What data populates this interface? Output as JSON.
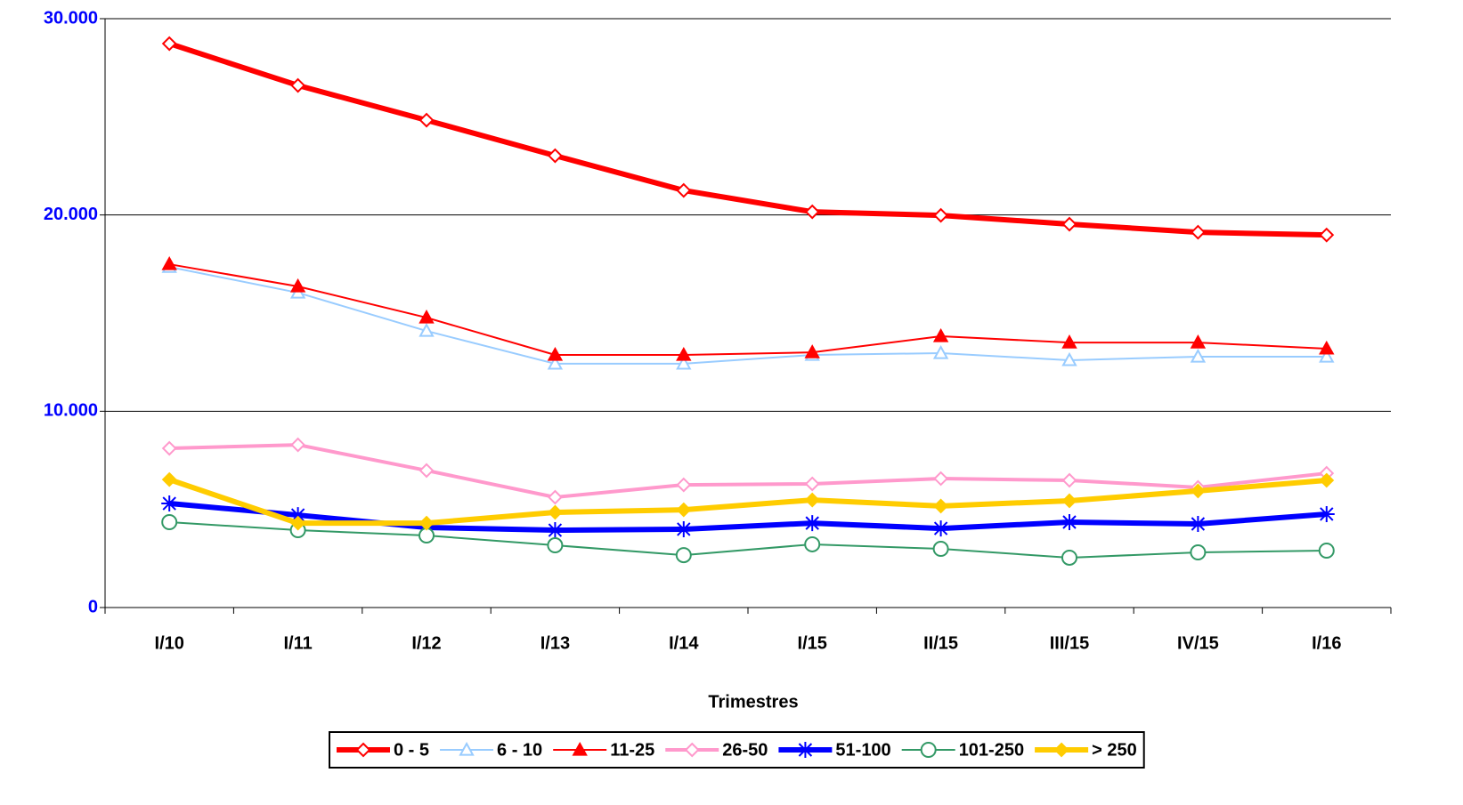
{
  "chart_data": {
    "type": "line",
    "x_label": "Trimestres",
    "categories": [
      "I/10",
      "I/11",
      "I/12",
      "I/13",
      "I/14",
      "I/15",
      "II/15",
      "III/15",
      "IV/15",
      "I/16"
    ],
    "ylim": [
      0,
      30000
    ],
    "yticks": [
      0,
      {
        "value": 10000,
        "label": "10.000"
      },
      {
        "value": 20000,
        "label": "20.000"
      },
      {
        "value": 30000,
        "label": "30.000"
      }
    ],
    "grid": true,
    "legend": "bottom",
    "series": [
      {
        "name": "0 - 5",
        "color": "#ff0000",
        "width": 6,
        "marker": "open-diamond",
        "values": [
          28730,
          26600,
          24830,
          23020,
          21250,
          20160,
          19980,
          19530,
          19120,
          18980
        ]
      },
      {
        "name": "6 - 10",
        "color": "#99ccff",
        "width": 2,
        "marker": "open-triangle",
        "values": [
          17350,
          16040,
          14090,
          12420,
          12420,
          12870,
          12960,
          12600,
          12780,
          12780
        ]
      },
      {
        "name": "11-25",
        "color": "#ff0000",
        "width": 2,
        "marker": "filled-triangle",
        "values": [
          17490,
          16360,
          14770,
          12870,
          12870,
          13000,
          13820,
          13500,
          13500,
          13190
        ]
      },
      {
        "name": "26-50",
        "color": "#ff99cc",
        "width": 4,
        "marker": "open-diamond",
        "values": [
          8110,
          8290,
          6980,
          5620,
          6250,
          6300,
          6570,
          6480,
          6120,
          6840
        ]
      },
      {
        "name": "51-100",
        "color": "#0000ff",
        "width": 6,
        "marker": "asterisk",
        "values": [
          5300,
          4710,
          4080,
          3940,
          3990,
          4300,
          4030,
          4350,
          4260,
          4760
        ]
      },
      {
        "name": "101-250",
        "color": "#339966",
        "width": 2,
        "marker": "open-circle",
        "values": [
          4350,
          3940,
          3670,
          3170,
          2670,
          3220,
          2990,
          2540,
          2810,
          2900
        ]
      },
      {
        "name": "> 250",
        "color": "#ffcc00",
        "width": 6,
        "marker": "filled-diamond",
        "values": [
          6520,
          4300,
          4300,
          4850,
          4980,
          5480,
          5170,
          5440,
          5940,
          6480
        ]
      }
    ]
  }
}
